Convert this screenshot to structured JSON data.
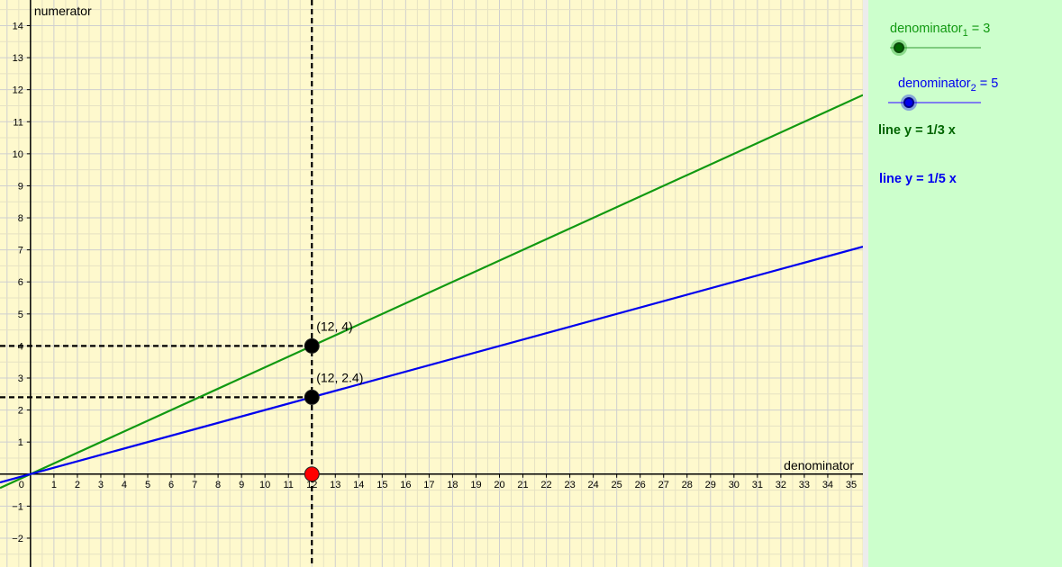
{
  "graph": {
    "axes": {
      "x_label": "denominator",
      "y_label": "numerator"
    },
    "x_range": [
      -1.3,
      35.5
    ],
    "y_range": [
      -2.9,
      14.8
    ],
    "x_ticks": [
      1,
      2,
      3,
      4,
      5,
      6,
      7,
      8,
      9,
      10,
      11,
      12,
      13,
      14,
      15,
      16,
      17,
      18,
      19,
      20,
      21,
      22,
      23,
      24,
      25,
      26,
      27,
      28,
      29,
      30,
      31,
      32,
      33,
      34,
      35
    ],
    "y_ticks": [
      -2,
      -1,
      1,
      2,
      3,
      4,
      5,
      6,
      7,
      8,
      9,
      10,
      11,
      12,
      13,
      14
    ],
    "origin_label": "0",
    "lines": [
      {
        "name": "line y = 1/3 x",
        "slope": 0.3333333,
        "color": "#119911"
      },
      {
        "name": "line y = 1/5 x",
        "slope": 0.2,
        "color": "#0000ee"
      }
    ],
    "vertical_guide_x": 12,
    "points": [
      {
        "x": 12,
        "y": 4,
        "label": "(12, 4)",
        "color": "#000000"
      },
      {
        "x": 12,
        "y": 2.4,
        "label": "(12, 2.4)",
        "color": "#000000"
      },
      {
        "x": 12,
        "y": 0,
        "label": "",
        "color": "#ff0000"
      }
    ]
  },
  "sliders": [
    {
      "name": "denominator",
      "subscript": "1",
      "equals": " = 3",
      "value": 3,
      "min": 1,
      "max": 10,
      "color": "#119911",
      "track_color": "#7fcc7f"
    },
    {
      "name": "denominator",
      "subscript": "2",
      "equals": " = 5",
      "value": 5,
      "min": 3,
      "max": 10,
      "color": "#0000ee",
      "track_color": "#7f7fee"
    }
  ],
  "equations": {
    "line1": "line y = 1/3 x",
    "line2": "line y = 1/5 x",
    "line1_color": "#006600",
    "line2_color": "#0000ee"
  },
  "colors": {
    "graph_bg": "#fef9cd",
    "panel_bg": "#ccffcc",
    "grid": "#d6d6d6"
  }
}
